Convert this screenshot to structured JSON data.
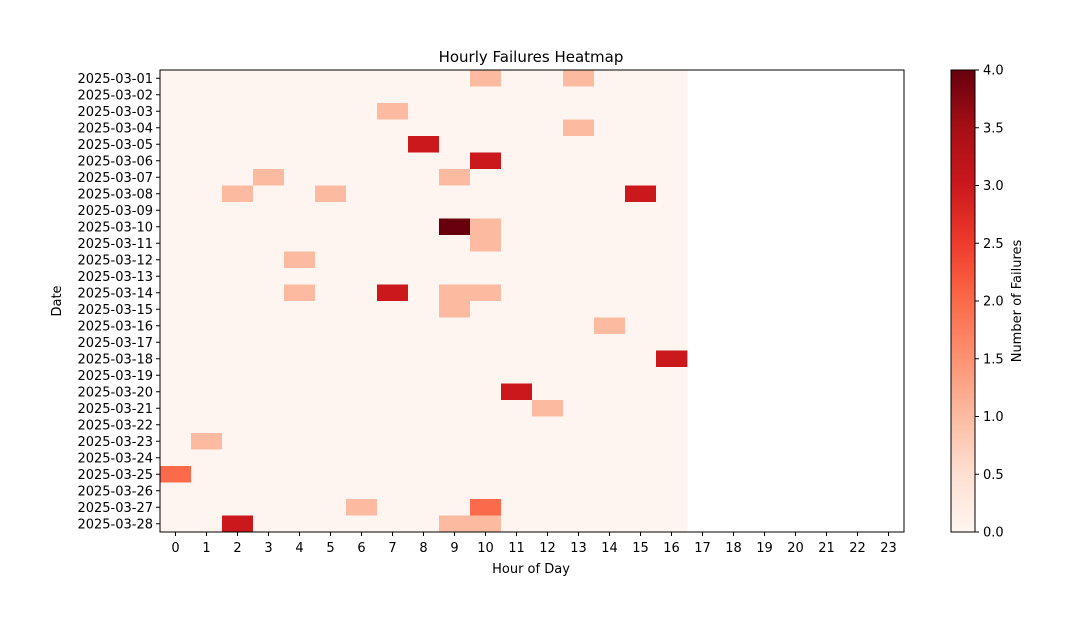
{
  "chart_data": {
    "type": "heatmap",
    "title": "Hourly Failures Heatmap",
    "xlabel": "Hour of Day",
    "ylabel": "Date",
    "colorbar_label": "Number of Failures",
    "colormap": "Reds",
    "x_ticks": [
      "0",
      "1",
      "2",
      "3",
      "4",
      "5",
      "6",
      "7",
      "8",
      "9",
      "10",
      "11",
      "12",
      "13",
      "14",
      "15",
      "16",
      "17",
      "18",
      "19",
      "20",
      "21",
      "22",
      "23"
    ],
    "data_hours": 17,
    "rows": [
      {
        "date": "2025-03-01",
        "values": [
          0,
          0,
          0,
          0,
          0,
          0,
          0,
          0,
          0,
          0,
          1,
          0,
          0,
          1,
          0,
          0,
          0
        ]
      },
      {
        "date": "2025-03-02",
        "values": [
          0,
          0,
          0,
          0,
          0,
          0,
          0,
          0,
          0,
          0,
          0,
          0,
          0,
          0,
          0,
          0,
          0
        ]
      },
      {
        "date": "2025-03-03",
        "values": [
          0,
          0,
          0,
          0,
          0,
          0,
          0,
          1,
          0,
          0,
          0,
          0,
          0,
          0,
          0,
          0,
          0
        ]
      },
      {
        "date": "2025-03-04",
        "values": [
          0,
          0,
          0,
          0,
          0,
          0,
          0,
          0,
          0,
          0,
          0,
          0,
          0,
          1,
          0,
          0,
          0
        ]
      },
      {
        "date": "2025-03-05",
        "values": [
          0,
          0,
          0,
          0,
          0,
          0,
          0,
          0,
          3,
          0,
          0,
          0,
          0,
          0,
          0,
          0,
          0
        ]
      },
      {
        "date": "2025-03-06",
        "values": [
          0,
          0,
          0,
          0,
          0,
          0,
          0,
          0,
          0,
          0,
          3,
          0,
          0,
          0,
          0,
          0,
          0
        ]
      },
      {
        "date": "2025-03-07",
        "values": [
          0,
          0,
          0,
          1,
          0,
          0,
          0,
          0,
          0,
          1,
          0,
          0,
          0,
          0,
          0,
          0,
          0
        ]
      },
      {
        "date": "2025-03-08",
        "values": [
          0,
          0,
          1,
          0,
          0,
          1,
          0,
          0,
          0,
          0,
          0,
          0,
          0,
          0,
          0,
          3,
          0
        ]
      },
      {
        "date": "2025-03-09",
        "values": [
          0,
          0,
          0,
          0,
          0,
          0,
          0,
          0,
          0,
          0,
          0,
          0,
          0,
          0,
          0,
          0,
          0
        ]
      },
      {
        "date": "2025-03-10",
        "values": [
          0,
          0,
          0,
          0,
          0,
          0,
          0,
          0,
          0,
          4,
          1,
          0,
          0,
          0,
          0,
          0,
          0
        ]
      },
      {
        "date": "2025-03-11",
        "values": [
          0,
          0,
          0,
          0,
          0,
          0,
          0,
          0,
          0,
          0,
          1,
          0,
          0,
          0,
          0,
          0,
          0
        ]
      },
      {
        "date": "2025-03-12",
        "values": [
          0,
          0,
          0,
          0,
          1,
          0,
          0,
          0,
          0,
          0,
          0,
          0,
          0,
          0,
          0,
          0,
          0
        ]
      },
      {
        "date": "2025-03-13",
        "values": [
          0,
          0,
          0,
          0,
          0,
          0,
          0,
          0,
          0,
          0,
          0,
          0,
          0,
          0,
          0,
          0,
          0
        ]
      },
      {
        "date": "2025-03-14",
        "values": [
          0,
          0,
          0,
          0,
          1,
          0,
          0,
          3,
          0,
          1,
          1,
          0,
          0,
          0,
          0,
          0,
          0
        ]
      },
      {
        "date": "2025-03-15",
        "values": [
          0,
          0,
          0,
          0,
          0,
          0,
          0,
          0,
          0,
          1,
          0,
          0,
          0,
          0,
          0,
          0,
          0
        ]
      },
      {
        "date": "2025-03-16",
        "values": [
          0,
          0,
          0,
          0,
          0,
          0,
          0,
          0,
          0,
          0,
          0,
          0,
          0,
          0,
          1,
          0,
          0
        ]
      },
      {
        "date": "2025-03-17",
        "values": [
          0,
          0,
          0,
          0,
          0,
          0,
          0,
          0,
          0,
          0,
          0,
          0,
          0,
          0,
          0,
          0,
          0
        ]
      },
      {
        "date": "2025-03-18",
        "values": [
          0,
          0,
          0,
          0,
          0,
          0,
          0,
          0,
          0,
          0,
          0,
          0,
          0,
          0,
          0,
          0,
          3
        ]
      },
      {
        "date": "2025-03-19",
        "values": [
          0,
          0,
          0,
          0,
          0,
          0,
          0,
          0,
          0,
          0,
          0,
          0,
          0,
          0,
          0,
          0,
          0
        ]
      },
      {
        "date": "2025-03-20",
        "values": [
          0,
          0,
          0,
          0,
          0,
          0,
          0,
          0,
          0,
          0,
          0,
          3,
          0,
          0,
          0,
          0,
          0
        ]
      },
      {
        "date": "2025-03-21",
        "values": [
          0,
          0,
          0,
          0,
          0,
          0,
          0,
          0,
          0,
          0,
          0,
          0,
          1,
          0,
          0,
          0,
          0
        ]
      },
      {
        "date": "2025-03-22",
        "values": [
          0,
          0,
          0,
          0,
          0,
          0,
          0,
          0,
          0,
          0,
          0,
          0,
          0,
          0,
          0,
          0,
          0
        ]
      },
      {
        "date": "2025-03-23",
        "values": [
          0,
          1,
          0,
          0,
          0,
          0,
          0,
          0,
          0,
          0,
          0,
          0,
          0,
          0,
          0,
          0,
          0
        ]
      },
      {
        "date": "2025-03-24",
        "values": [
          0,
          0,
          0,
          0,
          0,
          0,
          0,
          0,
          0,
          0,
          0,
          0,
          0,
          0,
          0,
          0,
          0
        ]
      },
      {
        "date": "2025-03-25",
        "values": [
          2,
          0,
          0,
          0,
          0,
          0,
          0,
          0,
          0,
          0,
          0,
          0,
          0,
          0,
          0,
          0,
          0
        ]
      },
      {
        "date": "2025-03-26",
        "values": [
          0,
          0,
          0,
          0,
          0,
          0,
          0,
          0,
          0,
          0,
          0,
          0,
          0,
          0,
          0,
          0,
          0
        ]
      },
      {
        "date": "2025-03-27",
        "values": [
          0,
          0,
          0,
          0,
          0,
          0,
          1,
          0,
          0,
          0,
          2,
          0,
          0,
          0,
          0,
          0,
          0
        ]
      },
      {
        "date": "2025-03-28",
        "values": [
          0,
          0,
          3,
          0,
          0,
          0,
          0,
          0,
          0,
          1,
          1,
          0,
          0,
          0,
          0,
          0,
          0
        ]
      }
    ],
    "vmin": 0,
    "vmax": 4,
    "colorbar_ticks": [
      "0.0",
      "0.5",
      "1.0",
      "1.5",
      "2.0",
      "2.5",
      "3.0",
      "3.5",
      "4.0"
    ],
    "colors": {
      "0": "#fff5f0",
      "1": "#fcbba1",
      "2": "#fb6a4a",
      "3": "#cb181d",
      "4": "#67000d"
    }
  }
}
